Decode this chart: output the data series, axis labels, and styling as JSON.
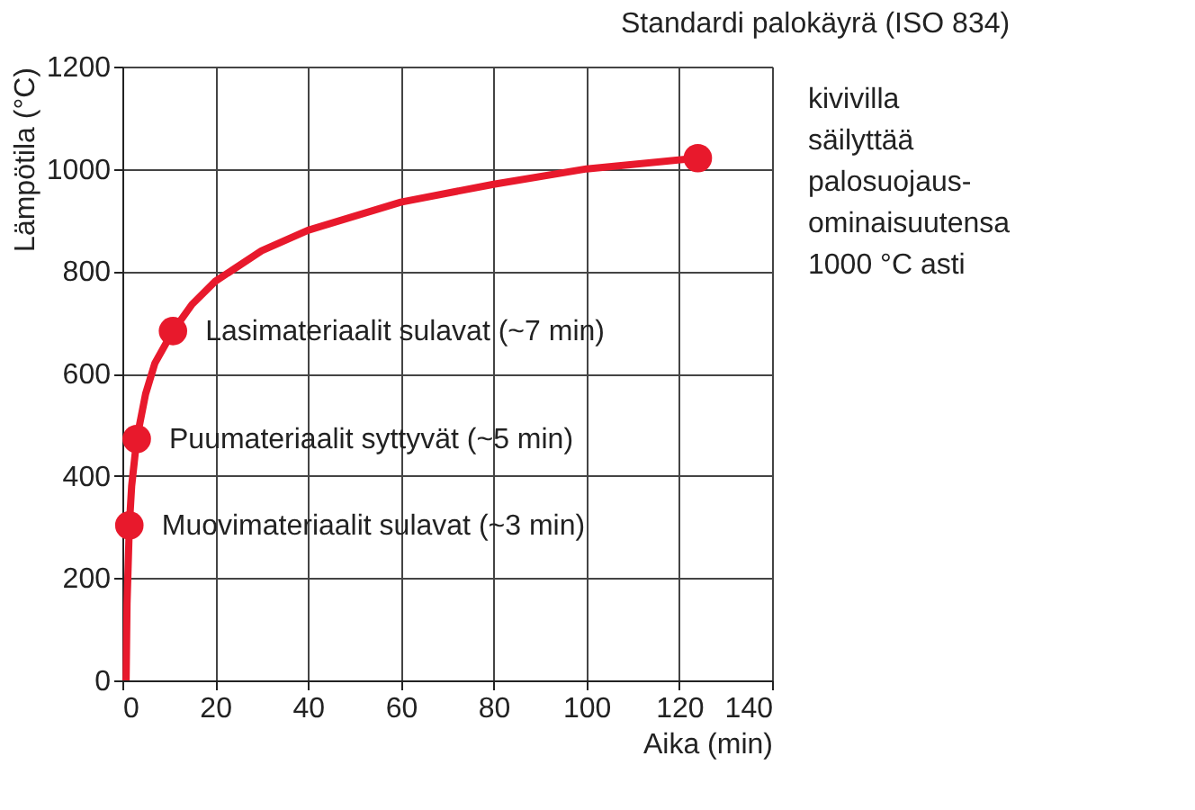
{
  "chart_data": {
    "type": "line",
    "title": "Standardi palokäyrä (ISO 834)",
    "xlabel": "Aika (min)",
    "ylabel": "Lämpötila (°C)",
    "xlim": [
      0,
      140
    ],
    "ylim": [
      0,
      1200
    ],
    "xticks": [
      0,
      20,
      40,
      60,
      80,
      100,
      120,
      140
    ],
    "yticks": [
      0,
      200,
      400,
      600,
      800,
      1000,
      1200
    ],
    "grid": true,
    "series": [
      {
        "color": "#e8192c",
        "marker": "none",
        "line_style": "solid",
        "x": [
          0.8,
          1,
          1.5,
          2,
          3.1,
          5,
          7,
          10.9,
          15,
          20,
          30,
          40,
          60,
          80,
          100,
          124
        ],
        "values": [
          0,
          150,
          303,
          380,
          472,
          560,
          620,
          683,
          735,
          780,
          840,
          880,
          935,
          970,
          1000,
          1021
        ]
      },
      {
        "type": "scatter",
        "color": "#e8192c",
        "marker": "circle",
        "x": [
          1.5,
          3.1,
          10.9,
          124
        ],
        "values": [
          303,
          472,
          683,
          1021
        ]
      }
    ],
    "annotations": [
      {
        "text": "Muovimateriaalit sulavat (~3 min)",
        "x": 1.5,
        "y": 303
      },
      {
        "text": "Puumateriaalit syttyvät (~5 min)",
        "x": 3.1,
        "y": 472
      },
      {
        "text": "Lasimateriaalit sulavat (~7 min)",
        "x": 10.9,
        "y": 683
      },
      "kivivilla\nsäilyttää\npalosuojaus-\nominaisuutensa\n1000 °C asti"
    ]
  }
}
